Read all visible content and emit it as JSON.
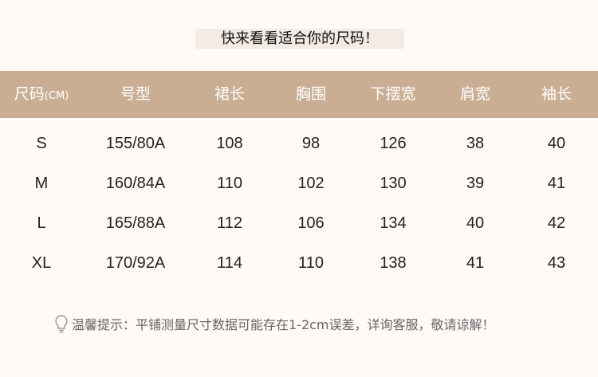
{
  "title": "快来看看适合你的尺码！",
  "table": {
    "headers": [
      "尺码",
      "号型",
      "裙长",
      "胸围",
      "下摆宽",
      "肩宽",
      "袖长"
    ],
    "first_header_unit": "(CM)",
    "rows": [
      [
        "S",
        "155/80A",
        "108",
        "98",
        "126",
        "38",
        "40"
      ],
      [
        "M",
        "160/84A",
        "110",
        "102",
        "130",
        "39",
        "41"
      ],
      [
        "L",
        "165/88A",
        "112",
        "106",
        "134",
        "40",
        "42"
      ],
      [
        "XL",
        "170/92A",
        "114",
        "110",
        "138",
        "41",
        "43"
      ]
    ]
  },
  "tip": {
    "icon": "lightbulb-icon",
    "text": "温馨提示：平铺测量尺寸数据可能存在1-2cm误差，详询客服，敬请谅解！"
  },
  "colors": {
    "header_bg": "#c9ae94",
    "background": "#fffaf6"
  }
}
